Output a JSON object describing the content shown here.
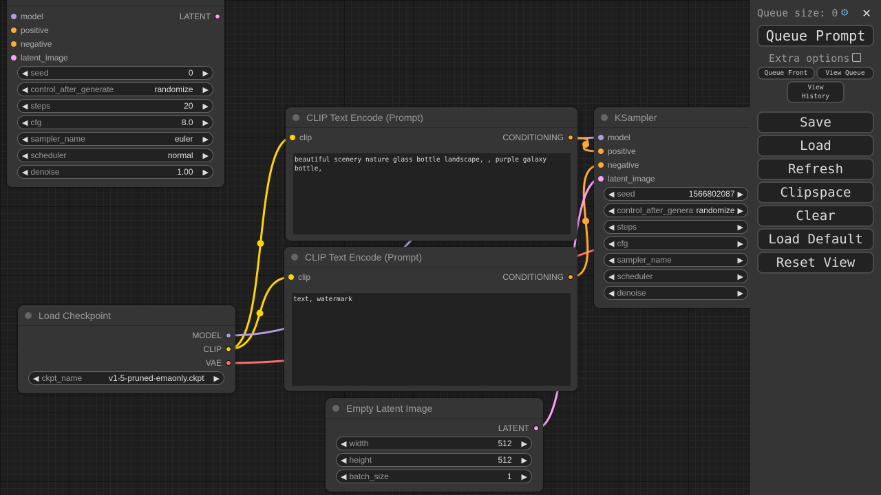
{
  "colors": {
    "model": "#b39ddb",
    "clip": "#ffd500",
    "conditioning": "#ffa931",
    "latent": "#ff9cf9",
    "vae": "#ff6e6e"
  },
  "ksampler_top": {
    "inputs": [
      "model",
      "positive",
      "negative",
      "latent_image"
    ],
    "output": "LATENT",
    "widgets": [
      {
        "label": "seed",
        "value": "0"
      },
      {
        "label": "control_after_generate",
        "value": "randomize"
      },
      {
        "label": "steps",
        "value": "20"
      },
      {
        "label": "cfg",
        "value": "8.0"
      },
      {
        "label": "sampler_name",
        "value": "euler"
      },
      {
        "label": "scheduler",
        "value": "normal"
      },
      {
        "label": "denoise",
        "value": "1.00"
      }
    ]
  },
  "clip_pos": {
    "title": "CLIP Text Encode (Prompt)",
    "input": "clip",
    "output": "CONDITIONING",
    "text": "beautiful scenery nature glass bottle landscape, , purple galaxy bottle,"
  },
  "clip_neg": {
    "title": "CLIP Text Encode (Prompt)",
    "input": "clip",
    "output": "CONDITIONING",
    "text": "text, watermark"
  },
  "checkpoint": {
    "title": "Load Checkpoint",
    "outputs": [
      "MODEL",
      "CLIP",
      "VAE"
    ],
    "widget": {
      "label": "ckpt_name",
      "value": "v1-5-pruned-emaonly.ckpt"
    }
  },
  "ksampler": {
    "title": "KSampler",
    "inputs": [
      "model",
      "positive",
      "negative",
      "latent_image"
    ],
    "widgets": [
      {
        "label": "seed",
        "value": "1566802087"
      },
      {
        "label": "control_after_generate",
        "value": "randomize"
      },
      {
        "label": "steps",
        "value": ""
      },
      {
        "label": "cfg",
        "value": ""
      },
      {
        "label": "sampler_name",
        "value": ""
      },
      {
        "label": "scheduler",
        "value": ""
      },
      {
        "label": "denoise",
        "value": ""
      }
    ]
  },
  "latent": {
    "title": "Empty Latent Image",
    "output": "LATENT",
    "widgets": [
      {
        "label": "width",
        "value": "512"
      },
      {
        "label": "height",
        "value": "512"
      },
      {
        "label": "batch_size",
        "value": "1"
      }
    ]
  },
  "panel": {
    "queue_size": "Queue size: 0",
    "queue_prompt": "Queue Prompt",
    "extra_options": "Extra options",
    "queue_front": "Queue Front",
    "view_queue": "View Queue",
    "view_history": "View History",
    "buttons": [
      "Save",
      "Load",
      "Refresh",
      "Clipspace",
      "Clear",
      "Load Default",
      "Reset View"
    ]
  }
}
